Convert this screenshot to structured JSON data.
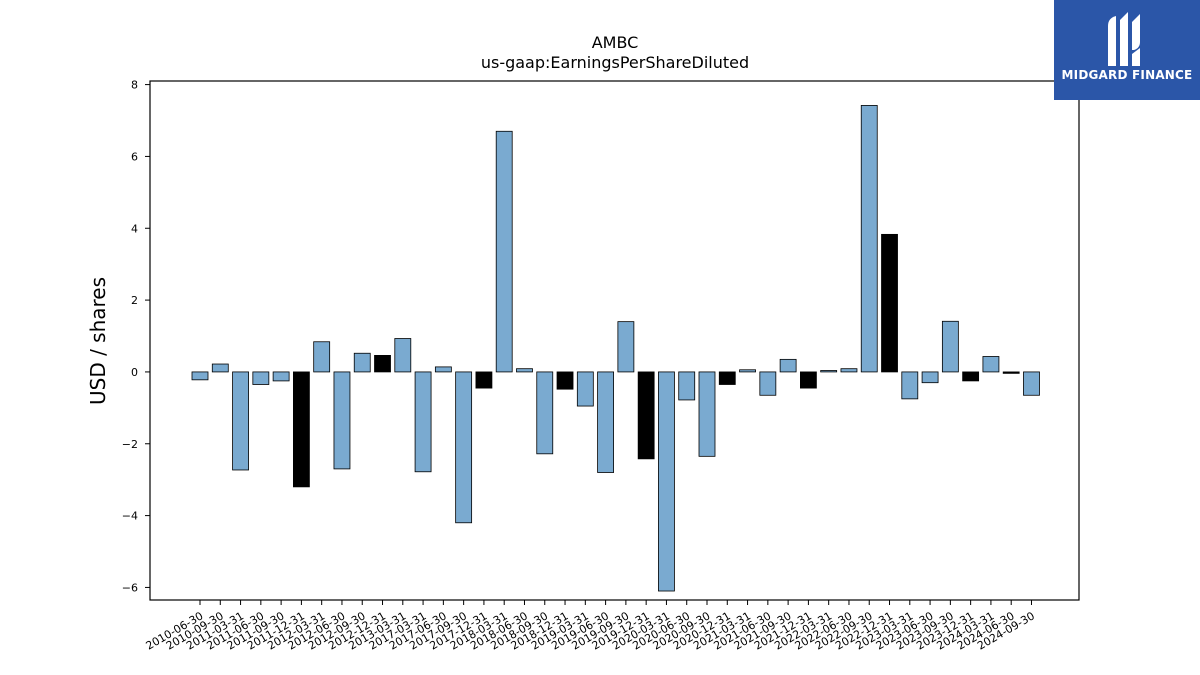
{
  "logo": {
    "text": "MIDGARD FINANCE",
    "color": "#2b56a8"
  },
  "chart_data": {
    "type": "bar",
    "title": "AMBC",
    "subtitle": "us-gaap:EarningsPerShareDiluted",
    "ylabel": "USD / shares",
    "xlabel": "",
    "ylim": [
      -6.35,
      8.1
    ],
    "yticks": [
      -6,
      -4,
      -2,
      0,
      2,
      4,
      6,
      8
    ],
    "grid": false,
    "colors": {
      "default": "#7aaad0",
      "highlight": "#000000"
    },
    "categories": [
      "2010-06-30",
      "2010-09-30",
      "2011-03-31",
      "2011-06-30",
      "2011-09-30",
      "2011-12-31",
      "2012-03-31",
      "2012-06-30",
      "2012-09-30",
      "2012-12-31",
      "2013-03-31",
      "2017-03-31",
      "2017-06-30",
      "2017-09-30",
      "2017-12-31",
      "2018-03-31",
      "2018-06-30",
      "2018-09-30",
      "2018-12-31",
      "2019-03-31",
      "2019-06-30",
      "2019-09-30",
      "2019-12-31",
      "2020-03-31",
      "2020-06-30",
      "2020-09-30",
      "2020-12-31",
      "2021-03-31",
      "2021-06-30",
      "2021-09-30",
      "2021-12-31",
      "2022-03-31",
      "2022-06-30",
      "2022-09-30",
      "2022-12-31",
      "2023-03-31",
      "2023-06-30",
      "2023-09-30",
      "2023-12-31",
      "2024-03-31",
      "2024-06-30",
      "2024-09-30"
    ],
    "values": [
      -0.22,
      0.22,
      -2.73,
      -0.35,
      -0.25,
      -3.2,
      0.84,
      -2.7,
      0.52,
      0.46,
      0.93,
      -2.78,
      0.14,
      -4.2,
      -0.45,
      6.7,
      0.09,
      -2.28,
      -0.48,
      -0.95,
      -2.8,
      1.4,
      -2.42,
      -6.1,
      -0.78,
      -2.35,
      -0.35,
      0.06,
      -0.65,
      0.35,
      -0.45,
      0.04,
      0.09,
      7.42,
      3.83,
      -0.75,
      -0.3,
      1.41,
      -0.25,
      0.43,
      -0.04,
      -0.65
    ],
    "highlight": [
      false,
      false,
      false,
      false,
      false,
      true,
      false,
      false,
      false,
      true,
      false,
      false,
      false,
      false,
      true,
      false,
      false,
      false,
      true,
      false,
      false,
      false,
      true,
      false,
      false,
      false,
      true,
      false,
      false,
      false,
      true,
      false,
      false,
      false,
      true,
      false,
      false,
      false,
      true,
      false,
      true,
      false
    ]
  }
}
